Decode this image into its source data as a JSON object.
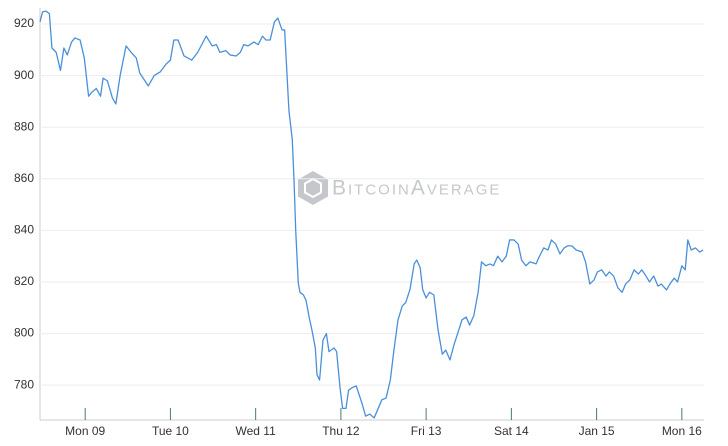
{
  "chart_data": {
    "type": "line",
    "watermark": "BitcoinAverage",
    "x": [
      -0.53,
      -0.5,
      -0.46,
      -0.42,
      -0.39,
      -0.34,
      -0.29,
      -0.25,
      -0.21,
      -0.16,
      -0.12,
      -0.06,
      -0.01,
      0.04,
      0.08,
      0.13,
      0.18,
      0.21,
      0.26,
      0.32,
      0.36,
      0.41,
      0.48,
      0.54,
      0.6,
      0.64,
      0.74,
      0.81,
      0.88,
      0.95,
      1.0,
      1.04,
      1.09,
      1.16,
      1.25,
      1.32,
      1.42,
      1.49,
      1.54,
      1.58,
      1.65,
      1.7,
      1.77,
      1.82,
      1.86,
      1.91,
      1.98,
      2.03,
      2.08,
      2.12,
      2.17,
      2.22,
      2.26,
      2.31,
      2.34,
      2.39,
      2.43,
      2.45,
      2.47,
      2.5,
      2.52,
      2.56,
      2.59,
      2.63,
      2.66,
      2.7,
      2.72,
      2.75,
      2.79,
      2.83,
      2.86,
      2.92,
      2.95,
      2.99,
      3.02,
      3.06,
      3.09,
      3.13,
      3.18,
      3.25,
      3.29,
      3.34,
      3.39,
      3.43,
      3.48,
      3.53,
      3.58,
      3.62,
      3.67,
      3.72,
      3.76,
      3.81,
      3.86,
      3.89,
      3.93,
      3.96,
      4.0,
      4.04,
      4.09,
      4.14,
      4.19,
      4.23,
      4.28,
      4.33,
      4.37,
      4.42,
      4.47,
      4.51,
      4.56,
      4.61,
      4.65,
      4.7,
      4.75,
      4.79,
      4.84,
      4.89,
      4.94,
      4.98,
      5.03,
      5.08,
      5.12,
      5.17,
      5.22,
      5.29,
      5.33,
      5.38,
      5.43,
      5.47,
      5.52,
      5.57,
      5.62,
      5.66,
      5.71,
      5.76,
      5.83,
      5.87,
      5.92,
      5.97,
      6.01,
      6.06,
      6.11,
      6.15,
      6.2,
      6.25,
      6.3,
      6.34,
      6.39,
      6.44,
      6.49,
      6.53,
      6.58,
      6.62,
      6.67,
      6.72,
      6.76,
      6.82,
      6.86,
      6.91,
      6.95,
      7.0,
      7.04,
      7.07,
      7.11,
      7.16,
      7.21,
      7.25
    ],
    "series": [
      {
        "color": "#4a90d9",
        "values": [
          920.8,
          924.7,
          925,
          924,
          910.7,
          909,
          902,
          910.7,
          908,
          913,
          914.6,
          913.8,
          906.8,
          892,
          893.6,
          895,
          892,
          899,
          898,
          891.3,
          889,
          900,
          911.5,
          909,
          906.8,
          901,
          896,
          900,
          901.4,
          904.5,
          906,
          913.8,
          913.8,
          907.6,
          906,
          909,
          915.3,
          911.5,
          912,
          909,
          909.7,
          908,
          907.6,
          909,
          912,
          911.5,
          913,
          912,
          915.3,
          913.8,
          913.8,
          920.8,
          922.3,
          917.7,
          917.7,
          886.7,
          875,
          859.5,
          840,
          819.6,
          816,
          815,
          813,
          806,
          801.4,
          794.4,
          784,
          782,
          797.5,
          800,
          793,
          794.4,
          793,
          779,
          771,
          771,
          778,
          779,
          779.7,
          772.7,
          768,
          768.8,
          767.3,
          770.4,
          774.3,
          775,
          782,
          793,
          805.3,
          810.7,
          812,
          817,
          827,
          828.5,
          825.5,
          817,
          813.8,
          816,
          815,
          801.4,
          792,
          793.6,
          789.8,
          796,
          800,
          805.3,
          806.4,
          803.3,
          807,
          816,
          827.8,
          826.3,
          827,
          826.3,
          830,
          827.8,
          830,
          836.3,
          836.3,
          834.7,
          828.5,
          826.3,
          827.8,
          827,
          830,
          833.2,
          832.4,
          836.3,
          834.7,
          830.9,
          833.2,
          834,
          834,
          832.4,
          831.6,
          827.8,
          819.2,
          820.8,
          823.9,
          824.7,
          822.3,
          823.9,
          822.3,
          817.7,
          816,
          819.2,
          820.8,
          824.7,
          823.1,
          824.7,
          822.3,
          820,
          822.3,
          818.4,
          819.2,
          816.9,
          819.2,
          821.5,
          820,
          826.3,
          824.7,
          836.3,
          832.4,
          833.2,
          831.6,
          832.4
        ]
      }
    ],
    "xlim": [
      -0.53,
      7.26
    ],
    "xticks": [
      {
        "value": 0,
        "label": "Mon 09"
      },
      {
        "value": 1,
        "label": "Tue 10"
      },
      {
        "value": 2,
        "label": "Wed 11"
      },
      {
        "value": 3,
        "label": "Thu 12"
      },
      {
        "value": 4,
        "label": "Fri 13"
      },
      {
        "value": 5,
        "label": "Sat 14"
      },
      {
        "value": 6,
        "label": "Jan 15"
      },
      {
        "value": 7,
        "label": "Mon 16"
      }
    ],
    "ylim": [
      766.5,
      926.2
    ],
    "yticks": [
      780,
      800,
      820,
      840,
      860,
      880,
      900,
      920
    ],
    "grid": true
  }
}
